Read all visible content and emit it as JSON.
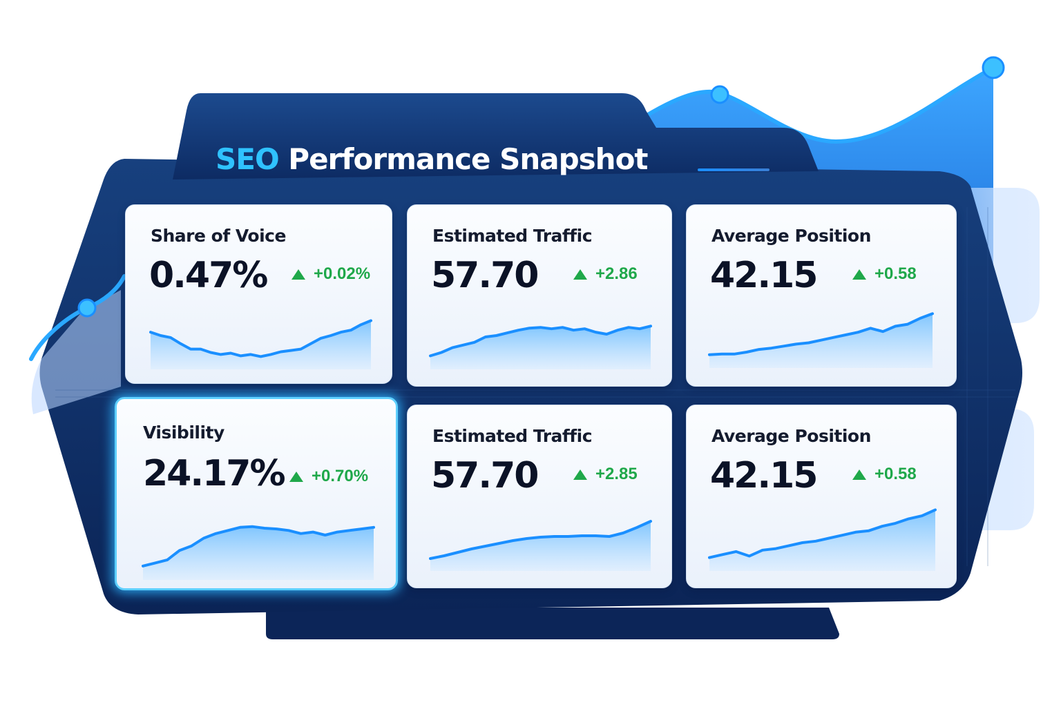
{
  "header": {
    "title_accent": "SEO",
    "title_rest": "Performance Snapshot"
  },
  "colors": {
    "accent": "#2fc2ff",
    "panel_dark": "#0e2a5e",
    "positive": "#1fa84a",
    "sparkline": "#1a8fff"
  },
  "metrics": [
    {
      "label": "Share of Voice",
      "value": "0.47%",
      "delta": "+0.02%",
      "trend": "up",
      "selected": false,
      "sparkline": [
        55,
        50,
        47,
        38,
        30,
        30,
        25,
        22,
        24,
        20,
        22,
        19,
        22,
        26,
        28,
        30,
        38,
        46,
        50,
        55,
        58,
        66,
        72
      ]
    },
    {
      "label": "Estimated Traffic",
      "value": "57.70",
      "delta": "+2.86",
      "trend": "up",
      "selected": false,
      "sparkline": [
        20,
        25,
        32,
        36,
        40,
        48,
        50,
        54,
        58,
        61,
        62,
        60,
        62,
        58,
        60,
        55,
        52,
        58,
        62,
        60,
        64
      ]
    },
    {
      "label": "Average Position",
      "value": "42.15",
      "delta": "+0.58",
      "trend": "up",
      "selected": false,
      "sparkline": [
        20,
        21,
        21,
        24,
        28,
        30,
        33,
        36,
        38,
        42,
        46,
        50,
        54,
        60,
        55,
        63,
        66,
        75,
        82
      ]
    },
    {
      "label": "Visibility",
      "value": "24.17%",
      "delta": "+0.70%",
      "trend": "up",
      "selected": true,
      "sparkline": [
        18,
        22,
        26,
        38,
        44,
        54,
        60,
        64,
        68,
        69,
        67,
        66,
        64,
        60,
        62,
        58,
        62,
        64,
        66,
        68
      ]
    },
    {
      "label": "Estimated Traffic",
      "value": "57.70",
      "delta": "+2.85",
      "trend": "up",
      "selected": false,
      "sparkline": [
        18,
        22,
        27,
        32,
        36,
        40,
        44,
        47,
        49,
        50,
        50,
        51,
        51,
        50,
        55,
        63,
        72
      ]
    },
    {
      "label": "Average Position",
      "value": "42.15",
      "delta": "+0.58",
      "trend": "up",
      "selected": false,
      "sparkline": [
        18,
        22,
        26,
        20,
        28,
        30,
        34,
        38,
        40,
        44,
        48,
        52,
        54,
        60,
        64,
        70,
        74,
        82
      ]
    }
  ]
}
